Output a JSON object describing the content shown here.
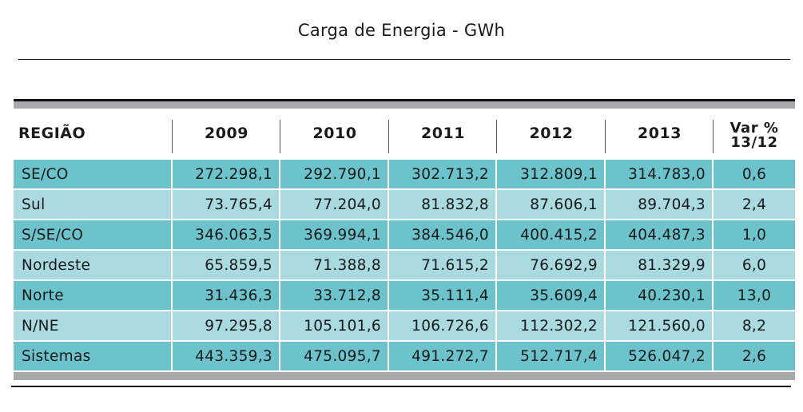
{
  "title": "Carga de Energia - GWh",
  "table": {
    "headers": [
      "REGIÃO",
      "2009",
      "2010",
      "2011",
      "2012",
      "2013"
    ],
    "var_header": {
      "line1": "Var %",
      "line2": "13/12"
    },
    "rows": [
      [
        "SE/CO",
        "272.298,1",
        "292.790,1",
        "302.713,2",
        "312.809,1",
        "314.783,0",
        "0,6"
      ],
      [
        "Sul",
        "73.765,4",
        "77.204,0",
        "81.832,8",
        "87.606,1",
        "89.704,3",
        "2,4"
      ],
      [
        "S/SE/CO",
        "346.063,5",
        "369.994,1",
        "384.546,0",
        "400.415,2",
        "404.487,3",
        "1,0"
      ],
      [
        "Nordeste",
        "65.859,5",
        "71.388,8",
        "71.615,2",
        "76.692,9",
        "81.329,9",
        "6,0"
      ],
      [
        "Norte",
        "31.436,3",
        "33.712,8",
        "35.111,4",
        "35.609,4",
        "40.230,1",
        "13,0"
      ],
      [
        "N/NE",
        "97.295,8",
        "105.101,6",
        "106.726,6",
        "112.302,2",
        "121.560,0",
        "8,2"
      ],
      [
        "Sistemas",
        "443.359,3",
        "475.095,7",
        "491.272,7",
        "512.717,4",
        "526.047,2",
        "2,6"
      ]
    ]
  },
  "colors": {
    "row_dark": "#6cc3cb",
    "row_light": "#a8dae0",
    "band_gray": "#a9a9ab"
  }
}
